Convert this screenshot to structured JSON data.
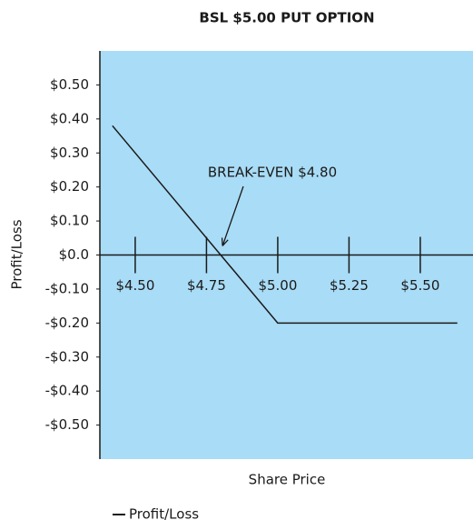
{
  "chart_data": {
    "type": "line",
    "title": "BSL $5.00 PUT OPTION",
    "xlabel": "Share Price",
    "ylabel": "Profit/Loss",
    "x": [
      4.42,
      5.0,
      5.63
    ],
    "series": [
      {
        "name": "Profit/Loss",
        "color": "#1a1a1a",
        "values": [
          0.38,
          -0.2,
          -0.2
        ]
      }
    ],
    "xlim": [
      4.376,
      5.685
    ],
    "ylim": [
      -0.6,
      0.6
    ],
    "xticks": [
      {
        "value": 4.5,
        "label": "$4.50"
      },
      {
        "value": 4.75,
        "label": "$4.75"
      },
      {
        "value": 5.0,
        "label": "$5.00"
      },
      {
        "value": 5.25,
        "label": "$5.25"
      },
      {
        "value": 5.5,
        "label": "$5.50"
      }
    ],
    "yticks": [
      {
        "value": 0.5,
        "label": "$0.50"
      },
      {
        "value": 0.4,
        "label": "$0.40"
      },
      {
        "value": 0.3,
        "label": "$0.30"
      },
      {
        "value": 0.2,
        "label": "$0.20"
      },
      {
        "value": 0.1,
        "label": "$0.10"
      },
      {
        "value": 0,
        "label": "$0.0"
      },
      {
        "value": -0.1,
        "label": "-$0.10"
      },
      {
        "value": -0.2,
        "label": "-$0.20"
      },
      {
        "value": -0.3,
        "label": "-$0.30"
      },
      {
        "value": -0.4,
        "label": "-$0.40"
      },
      {
        "value": -0.5,
        "label": "-$0.50"
      }
    ],
    "annotation": {
      "text": "BREAK-EVEN $4.80",
      "x": 4.8,
      "y": 0
    },
    "plot_background": "#a9dcf6",
    "legend": "bottom-left"
  }
}
